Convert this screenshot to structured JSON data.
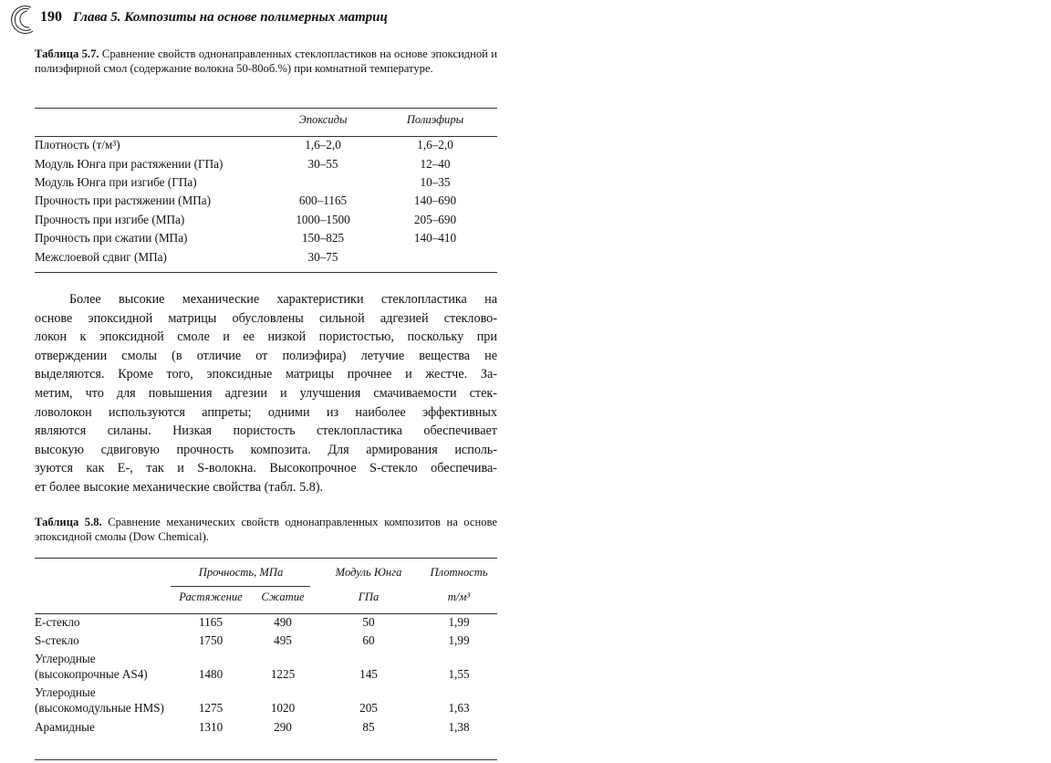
{
  "header": {
    "page_number": "190",
    "running_title": "Глава 5. Композиты на основе полимерных матриц"
  },
  "table57": {
    "caption_label": "Таблица 5.7.",
    "caption_text": " Сравнение свойств однонаправленных стеклопластиков на основе эпоксидной и полиэфирной смол (содержание волокна 50-80об.%) при комнатной температуре.",
    "columns": [
      "Эпоксиды",
      "Полиэфиры"
    ],
    "rows": [
      {
        "label": "Плотность (т/м³)",
        "epoxy": "1,6–2,0",
        "polyester": "1,6–2,0"
      },
      {
        "label": "Модуль Юнга при растяжении (ГПа)",
        "epoxy": "30–55",
        "polyester": "12–40"
      },
      {
        "label": "Модуль Юнга при изгибе (ГПа)",
        "epoxy": "",
        "polyester": "10–35"
      },
      {
        "label": "Прочность при растяжении (МПа)",
        "epoxy": "600–1165",
        "polyester": "140–690"
      },
      {
        "label": "Прочность при изгибе (МПа)",
        "epoxy": "1000–1500",
        "polyester": "205–690"
      },
      {
        "label": "Прочность при сжатии (МПа)",
        "epoxy": "150–825",
        "polyester": "140–410"
      },
      {
        "label": "Межслоевой сдвиг (МПа)",
        "epoxy": "30–75",
        "polyester": ""
      }
    ]
  },
  "paragraph": [
    "Более высокие механические характеристики стеклопластика на",
    "основе эпоксидной матрицы обусловлены сильной адгезией стеклово-",
    "локон к эпоксидной смоле и ее низкой пористостью, поскольку при",
    "отверждении смолы (в отличие от полиэфира) летучие вещества не",
    "выделяются. Кроме того, эпоксидные матрицы прочнее и жестче. За-",
    "метим, что для повышения адгезии и улучшения смачиваемости стек-",
    "ловолокон используются аппреты; одними из наиболее эффективных",
    "являются силаны. Низкая пористость стеклопластика обеспечивает",
    "высокую сдвиговую прочность композита. Для армирования исполь-",
    "зуются как Е-, так и S-волокна. Высокопрочное S-стекло обеспечива-",
    "ет более высокие механические свойства (табл. 5.8)."
  ],
  "table58": {
    "caption_label": "Таблица 5.8.",
    "caption_text": " Сравнение механических свойств однонаправленных композитов на основе эпоксидной смолы (Dow Chemical).",
    "header": {
      "strength": "Прочность, МПа",
      "tension": "Растяжение",
      "compression": "Сжатие",
      "modulus": "Модуль Юнга",
      "modulus_unit": "ГПа",
      "density": "Плотность",
      "density_unit": "т/м³"
    },
    "rows": [
      {
        "label": "Е-стекло",
        "label2": "",
        "tension": "1165",
        "compression": "490",
        "modulus": "50",
        "density": "1,99"
      },
      {
        "label": "S-стекло",
        "label2": "",
        "tension": "1750",
        "compression": "495",
        "modulus": "60",
        "density": "1,99"
      },
      {
        "label": "Углеродные",
        "label2": "(высокопрочные AS4)",
        "tension": "1480",
        "compression": "1225",
        "modulus": "145",
        "density": "1,55"
      },
      {
        "label": "Углеродные",
        "label2": "(высокомодульные HMS)",
        "tension": "1275",
        "compression": "1020",
        "modulus": "205",
        "density": "1,63"
      },
      {
        "label": "Арамидные",
        "label2": "",
        "tension": "1310",
        "compression": "290",
        "modulus": "85",
        "density": "1,38"
      }
    ]
  }
}
